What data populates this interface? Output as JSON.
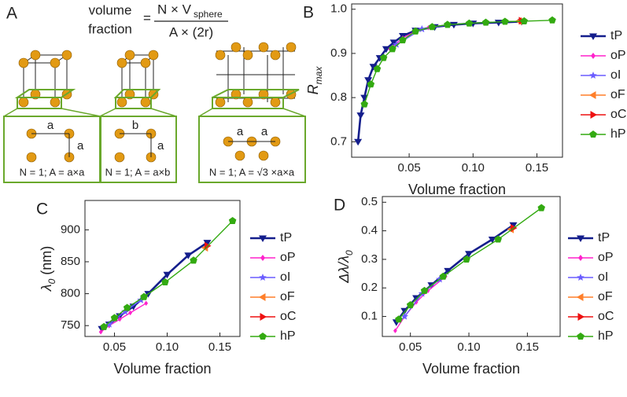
{
  "panel_a": {
    "label": "A",
    "formula": {
      "left": [
        "volume",
        "fraction"
      ],
      "equals": "=",
      "numerator": "N × V",
      "numerator_sub": "sphere",
      "denominator": "A × (2r)"
    },
    "cells": [
      {
        "caption": "N = 1; A = a×a",
        "labels": [
          "a",
          "a"
        ]
      },
      {
        "caption": "N = 1; A = a×b",
        "labels": [
          "b",
          "a"
        ]
      },
      {
        "caption": "N = 1; A = √3 ×a×a",
        "labels": [
          "a",
          "a"
        ]
      }
    ]
  },
  "chart_data": [
    {
      "type": "line",
      "panel_label": "B",
      "x_label": "Volume fraction",
      "y_label": [
        "R",
        "max"
      ],
      "legend": "right",
      "xlim": [
        0.005,
        0.17
      ],
      "ylim": [
        0.665,
        1.012
      ],
      "xticks": [
        {
          "value": 0.05,
          "label": "0.05"
        },
        {
          "value": 0.1,
          "label": "0.10"
        },
        {
          "value": 0.15,
          "label": "0.15"
        }
      ],
      "yticks": [
        0.7,
        0.8,
        0.9,
        {
          "value": 1.0,
          "label": "1.0"
        }
      ],
      "series": [
        {
          "name": "tP",
          "color": "#141e8c",
          "marker": "tri-down",
          "x": [
            0.01,
            0.012,
            0.015,
            0.018,
            0.022,
            0.027,
            0.032,
            0.038,
            0.045,
            0.055,
            0.07,
            0.085,
            0.1,
            0.12,
            0.138
          ],
          "values": [
            0.7,
            0.76,
            0.8,
            0.84,
            0.87,
            0.89,
            0.91,
            0.925,
            0.94,
            0.952,
            0.96,
            0.965,
            0.968,
            0.97,
            0.972
          ]
        },
        {
          "name": "oP",
          "color": "#ff22cc",
          "marker": "diamond",
          "x": [
            0.035,
            0.045,
            0.055,
            0.065,
            0.08
          ],
          "values": [
            0.91,
            0.935,
            0.95,
            0.958,
            0.965
          ]
        },
        {
          "name": "oI",
          "color": "#6a5cff",
          "marker": "star",
          "x": [
            0.04,
            0.06,
            0.08
          ],
          "values": [
            0.92,
            0.955,
            0.965
          ]
        },
        {
          "name": "oF",
          "color": "#ff7f2a",
          "marker": "tri-left",
          "x": [
            0.136
          ],
          "values": [
            0.973
          ]
        },
        {
          "name": "oC",
          "color": "#ee1111",
          "marker": "tri-right",
          "x": [
            0.138
          ],
          "values": [
            0.974
          ]
        },
        {
          "name": "hP",
          "color": "#33aa11",
          "marker": "pentagon",
          "x": [
            0.015,
            0.02,
            0.025,
            0.03,
            0.037,
            0.045,
            0.055,
            0.068,
            0.08,
            0.097,
            0.11,
            0.125,
            0.14,
            0.162
          ],
          "values": [
            0.785,
            0.83,
            0.865,
            0.89,
            0.91,
            0.93,
            0.95,
            0.96,
            0.965,
            0.968,
            0.97,
            0.972,
            0.973,
            0.975
          ]
        }
      ]
    },
    {
      "type": "line",
      "panel_label": "C",
      "x_label": "Volume fraction",
      "y_label": [
        "λ",
        "0",
        " (nm)"
      ],
      "legend": "right",
      "xlim": [
        0.022,
        0.169
      ],
      "ylim": [
        733,
        946
      ],
      "xticks": [
        {
          "value": 0.05,
          "label": "0.05"
        },
        {
          "value": 0.1,
          "label": "0.10"
        },
        {
          "value": 0.15,
          "label": "0.15"
        }
      ],
      "yticks": [
        750,
        800,
        850,
        900
      ],
      "series": [
        {
          "name": "tP",
          "color": "#141e8c",
          "marker": "tri-down",
          "x": [
            0.038,
            0.045,
            0.055,
            0.068,
            0.082,
            0.1,
            0.12,
            0.138
          ],
          "values": [
            745,
            752,
            765,
            780,
            800,
            830,
            860,
            880
          ]
        },
        {
          "name": "oP",
          "color": "#ff22cc",
          "marker": "diamond",
          "x": [
            0.037,
            0.045,
            0.055,
            0.065,
            0.08
          ],
          "values": [
            740,
            750,
            760,
            770,
            785
          ]
        },
        {
          "name": "oI",
          "color": "#6a5cff",
          "marker": "star",
          "x": [
            0.045,
            0.06,
            0.075
          ],
          "values": [
            752,
            772,
            790
          ]
        },
        {
          "name": "oF",
          "color": "#ff7f2a",
          "marker": "tri-left",
          "x": [
            0.136
          ],
          "values": [
            872
          ]
        },
        {
          "name": "oC",
          "color": "#ee1111",
          "marker": "tri-right",
          "x": [
            0.138
          ],
          "values": [
            875
          ]
        },
        {
          "name": "hP",
          "color": "#33aa11",
          "marker": "pentagon",
          "x": [
            0.04,
            0.05,
            0.062,
            0.078,
            0.098,
            0.125,
            0.162
          ],
          "values": [
            748,
            762,
            778,
            795,
            818,
            852,
            914
          ]
        }
      ]
    },
    {
      "type": "line",
      "panel_label": "D",
      "x_label": "Volume fraction",
      "y_label": [
        "Δλ/λ",
        "0"
      ],
      "legend": "right",
      "xlim": [
        0.026,
        0.178
      ],
      "ylim": [
        0.03,
        0.52
      ],
      "xticks": [
        {
          "value": 0.05,
          "label": "0.05"
        },
        {
          "value": 0.1,
          "label": "0.10"
        },
        {
          "value": 0.15,
          "label": "0.15"
        }
      ],
      "yticks": [
        0.1,
        0.2,
        0.3,
        0.4,
        0.5
      ],
      "series": [
        {
          "name": "tP",
          "color": "#141e8c",
          "marker": "tri-down",
          "x": [
            0.038,
            0.045,
            0.055,
            0.068,
            0.082,
            0.1,
            0.12,
            0.138
          ],
          "values": [
            0.08,
            0.12,
            0.165,
            0.21,
            0.26,
            0.32,
            0.37,
            0.42
          ]
        },
        {
          "name": "oP",
          "color": "#ff22cc",
          "marker": "diamond",
          "x": [
            0.037,
            0.045,
            0.055,
            0.065,
            0.08
          ],
          "values": [
            0.05,
            0.1,
            0.15,
            0.19,
            0.24
          ]
        },
        {
          "name": "oI",
          "color": "#6a5cff",
          "marker": "star",
          "x": [
            0.045,
            0.06,
            0.075
          ],
          "values": [
            0.1,
            0.18,
            0.23
          ]
        },
        {
          "name": "oF",
          "color": "#ff7f2a",
          "marker": "tri-left",
          "x": [
            0.136
          ],
          "values": [
            0.405
          ]
        },
        {
          "name": "oC",
          "color": "#ee1111",
          "marker": "tri-right",
          "x": [
            0.138
          ],
          "values": [
            0.41
          ]
        },
        {
          "name": "hP",
          "color": "#33aa11",
          "marker": "pentagon",
          "x": [
            0.04,
            0.05,
            0.062,
            0.078,
            0.098,
            0.125,
            0.162
          ],
          "values": [
            0.09,
            0.14,
            0.19,
            0.24,
            0.3,
            0.37,
            0.48
          ]
        }
      ]
    }
  ]
}
